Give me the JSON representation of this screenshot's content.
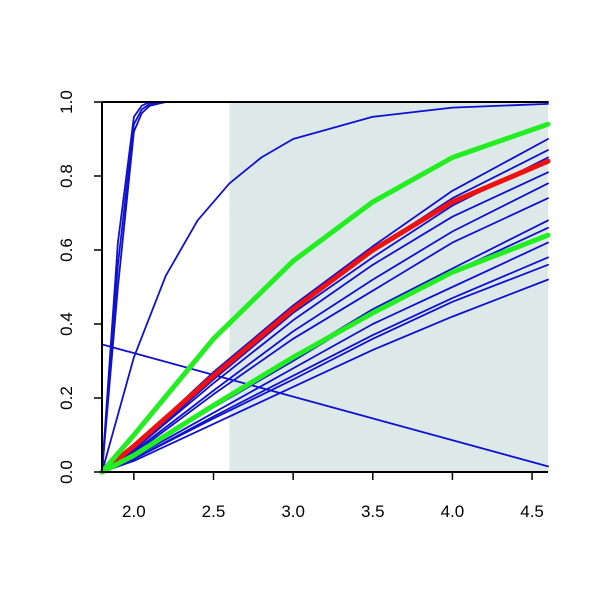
{
  "chart_data": {
    "type": "line",
    "title": "",
    "xlabel": "",
    "ylabel": "",
    "xlim": [
      1.8,
      4.6
    ],
    "ylim": [
      0,
      1
    ],
    "x_ticks": [
      "2.0",
      "2.5",
      "3.0",
      "3.5",
      "4.0",
      "4.5"
    ],
    "x_tick_values": [
      2.0,
      2.5,
      3.0,
      3.5,
      4.0,
      4.5
    ],
    "y_ticks": [
      "0.0",
      "0.2",
      "0.4",
      "0.6",
      "0.8",
      "1.0"
    ],
    "y_tick_values": [
      0.0,
      0.2,
      0.4,
      0.6,
      0.8,
      1.0
    ],
    "shaded_region": {
      "x_from": 2.6,
      "x_to": 4.6,
      "color": "#dde9e9"
    },
    "grid": false,
    "legend": "none",
    "colors": {
      "blue": "#1010d0",
      "red": "#ee1111",
      "green": "#22ee22"
    },
    "series": [
      {
        "color": "blue",
        "points": [
          [
            1.8,
            0
          ],
          [
            1.9,
            0.5
          ],
          [
            2.0,
            0.92
          ],
          [
            2.05,
            0.97
          ],
          [
            2.1,
            0.99
          ],
          [
            2.2,
            1.0
          ],
          [
            4.6,
            1.0
          ]
        ]
      },
      {
        "color": "blue",
        "points": [
          [
            1.8,
            0
          ],
          [
            1.9,
            0.56
          ],
          [
            2.0,
            0.94
          ],
          [
            2.05,
            0.98
          ],
          [
            2.1,
            0.995
          ],
          [
            2.2,
            1.0
          ],
          [
            4.6,
            1.0
          ]
        ]
      },
      {
        "color": "blue",
        "points": [
          [
            1.8,
            0
          ],
          [
            1.9,
            0.62
          ],
          [
            2.0,
            0.96
          ],
          [
            2.05,
            0.99
          ],
          [
            2.1,
            1.0
          ],
          [
            4.6,
            1.0
          ]
        ]
      },
      {
        "color": "blue",
        "points": [
          [
            1.8,
            0
          ],
          [
            2.0,
            0.31
          ],
          [
            2.2,
            0.53
          ],
          [
            2.4,
            0.68
          ],
          [
            2.6,
            0.78
          ],
          [
            2.8,
            0.85
          ],
          [
            3.0,
            0.9
          ],
          [
            3.5,
            0.96
          ],
          [
            4.0,
            0.985
          ],
          [
            4.6,
            0.995
          ]
        ]
      },
      {
        "color": "blue",
        "points": [
          [
            1.8,
            0.345
          ],
          [
            4.6,
            0.015
          ]
        ]
      },
      {
        "color": "blue",
        "points": [
          [
            1.8,
            0
          ],
          [
            2.0,
            0.07
          ],
          [
            2.5,
            0.27
          ],
          [
            3.0,
            0.45
          ],
          [
            3.5,
            0.61
          ],
          [
            4.0,
            0.76
          ],
          [
            4.6,
            0.9
          ]
        ]
      },
      {
        "color": "blue",
        "points": [
          [
            1.8,
            0
          ],
          [
            2.0,
            0.07
          ],
          [
            2.5,
            0.26
          ],
          [
            3.0,
            0.44
          ],
          [
            3.5,
            0.6
          ],
          [
            4.0,
            0.74
          ],
          [
            4.6,
            0.87
          ]
        ]
      },
      {
        "color": "blue",
        "points": [
          [
            1.8,
            0
          ],
          [
            2.0,
            0.06
          ],
          [
            2.5,
            0.25
          ],
          [
            3.0,
            0.43
          ],
          [
            3.5,
            0.58
          ],
          [
            4.0,
            0.72
          ],
          [
            4.6,
            0.85
          ]
        ]
      },
      {
        "color": "blue",
        "points": [
          [
            1.8,
            0
          ],
          [
            2.0,
            0.06
          ],
          [
            2.5,
            0.24
          ],
          [
            3.0,
            0.41
          ],
          [
            3.5,
            0.56
          ],
          [
            4.0,
            0.69
          ],
          [
            4.6,
            0.81
          ]
        ]
      },
      {
        "color": "blue",
        "points": [
          [
            1.8,
            0
          ],
          [
            2.0,
            0.055
          ],
          [
            2.5,
            0.22
          ],
          [
            3.0,
            0.38
          ],
          [
            3.5,
            0.52
          ],
          [
            4.0,
            0.65
          ],
          [
            4.6,
            0.78
          ]
        ]
      },
      {
        "color": "blue",
        "points": [
          [
            1.8,
            0
          ],
          [
            2.0,
            0.05
          ],
          [
            2.5,
            0.21
          ],
          [
            3.0,
            0.36
          ],
          [
            3.5,
            0.49
          ],
          [
            4.0,
            0.62
          ],
          [
            4.6,
            0.74
          ]
        ]
      },
      {
        "color": "blue",
        "points": [
          [
            1.8,
            0
          ],
          [
            2.0,
            0.045
          ],
          [
            2.5,
            0.18
          ],
          [
            3.0,
            0.31
          ],
          [
            3.5,
            0.44
          ],
          [
            4.0,
            0.55
          ],
          [
            4.6,
            0.68
          ]
        ]
      },
      {
        "color": "blue",
        "points": [
          [
            1.8,
            0
          ],
          [
            2.0,
            0.045
          ],
          [
            2.5,
            0.175
          ],
          [
            3.0,
            0.3
          ],
          [
            3.5,
            0.43
          ],
          [
            4.0,
            0.54
          ],
          [
            4.6,
            0.66
          ]
        ]
      },
      {
        "color": "blue",
        "points": [
          [
            1.8,
            0
          ],
          [
            2.0,
            0.04
          ],
          [
            2.5,
            0.16
          ],
          [
            3.0,
            0.28
          ],
          [
            3.5,
            0.4
          ],
          [
            4.0,
            0.5
          ],
          [
            4.6,
            0.62
          ]
        ]
      },
      {
        "color": "blue",
        "points": [
          [
            1.8,
            0
          ],
          [
            2.0,
            0.035
          ],
          [
            2.5,
            0.15
          ],
          [
            3.0,
            0.26
          ],
          [
            3.5,
            0.37
          ],
          [
            4.0,
            0.47
          ],
          [
            4.6,
            0.58
          ]
        ]
      },
      {
        "color": "blue",
        "points": [
          [
            1.8,
            0
          ],
          [
            2.0,
            0.035
          ],
          [
            2.5,
            0.145
          ],
          [
            3.0,
            0.25
          ],
          [
            3.5,
            0.36
          ],
          [
            4.0,
            0.46
          ],
          [
            4.6,
            0.56
          ]
        ]
      },
      {
        "color": "blue",
        "points": [
          [
            1.8,
            0
          ],
          [
            2.0,
            0.03
          ],
          [
            2.5,
            0.13
          ],
          [
            3.0,
            0.23
          ],
          [
            3.5,
            0.33
          ],
          [
            4.0,
            0.42
          ],
          [
            4.6,
            0.52
          ]
        ]
      },
      {
        "color": "red",
        "thick": true,
        "points": [
          [
            1.8,
            0
          ],
          [
            2.0,
            0.07
          ],
          [
            2.5,
            0.26
          ],
          [
            3.0,
            0.44
          ],
          [
            3.5,
            0.6
          ],
          [
            4.0,
            0.73
          ],
          [
            4.6,
            0.84
          ]
        ]
      },
      {
        "color": "green",
        "thick": true,
        "points": [
          [
            1.8,
            0
          ],
          [
            2.0,
            0.1
          ],
          [
            2.5,
            0.36
          ],
          [
            3.0,
            0.57
          ],
          [
            3.5,
            0.73
          ],
          [
            4.0,
            0.85
          ],
          [
            4.6,
            0.94
          ]
        ]
      },
      {
        "color": "green",
        "thick": true,
        "points": [
          [
            1.8,
            0
          ],
          [
            2.0,
            0.045
          ],
          [
            2.5,
            0.18
          ],
          [
            3.0,
            0.31
          ],
          [
            3.5,
            0.43
          ],
          [
            4.0,
            0.54
          ],
          [
            4.6,
            0.64
          ]
        ]
      }
    ]
  }
}
